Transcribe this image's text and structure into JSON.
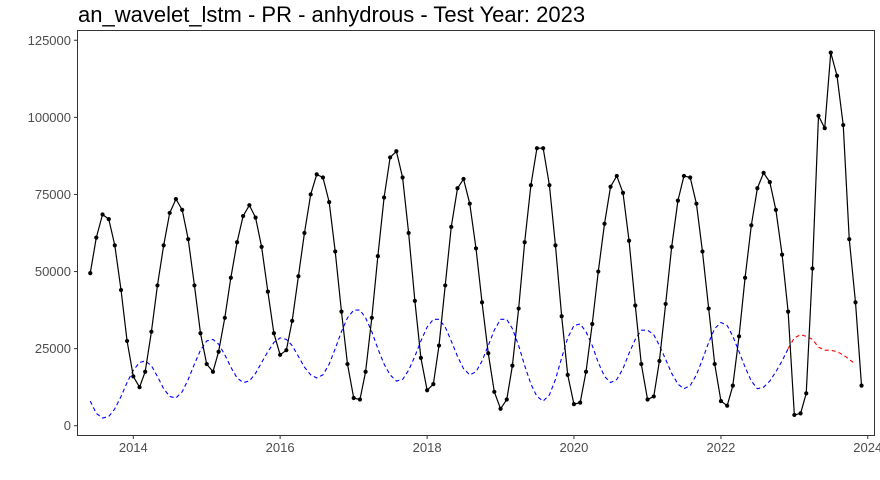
{
  "chart_data": {
    "type": "line",
    "title": "an_wavelet_lstm - PR - anhydrous - Test Year: 2023",
    "xlabel": "",
    "ylabel": "",
    "x_range": [
      "2013-04-01",
      "2024-02-01"
    ],
    "ylim": [
      -3000,
      128000
    ],
    "x_ticks": [
      "2014-01-01",
      "2016-01-01",
      "2018-01-01",
      "2020-01-01",
      "2022-01-01",
      "2024-01-01"
    ],
    "x_tick_labels": [
      "2014",
      "2016",
      "2018",
      "2020",
      "2022",
      "2024"
    ],
    "y_ticks": [
      0,
      25000,
      50000,
      75000,
      100000,
      125000
    ],
    "y_tick_labels": [
      "0",
      "25000",
      "50000",
      "75000",
      "100000",
      "125000"
    ],
    "grid": false,
    "legend": "none",
    "series": [
      {
        "style": "solid-with-points",
        "color": "#000000",
        "points": [
          [
            "2013-06-01",
            49500
          ],
          [
            "2013-07-01",
            61000
          ],
          [
            "2013-08-01",
            68500
          ],
          [
            "2013-09-01",
            67000
          ],
          [
            "2013-10-01",
            58500
          ],
          [
            "2013-11-01",
            44000
          ],
          [
            "2013-12-01",
            27500
          ],
          [
            "2014-01-01",
            16000
          ],
          [
            "2014-02-01",
            12500
          ],
          [
            "2014-03-01",
            17500
          ],
          [
            "2014-04-01",
            30500
          ],
          [
            "2014-05-01",
            45500
          ],
          [
            "2014-06-01",
            58500
          ],
          [
            "2014-07-01",
            69000
          ],
          [
            "2014-08-01",
            73500
          ],
          [
            "2014-09-01",
            70000
          ],
          [
            "2014-10-01",
            60500
          ],
          [
            "2014-11-01",
            45500
          ],
          [
            "2014-12-01",
            30000
          ],
          [
            "2015-01-01",
            20000
          ],
          [
            "2015-02-01",
            17500
          ],
          [
            "2015-03-01",
            24000
          ],
          [
            "2015-04-01",
            35000
          ],
          [
            "2015-05-01",
            48000
          ],
          [
            "2015-06-01",
            59500
          ],
          [
            "2015-07-01",
            68000
          ],
          [
            "2015-08-01",
            71500
          ],
          [
            "2015-09-01",
            67500
          ],
          [
            "2015-10-01",
            58000
          ],
          [
            "2015-11-01",
            43500
          ],
          [
            "2015-12-01",
            30000
          ],
          [
            "2016-01-01",
            23000
          ],
          [
            "2016-02-01",
            24500
          ],
          [
            "2016-03-01",
            34000
          ],
          [
            "2016-04-01",
            48500
          ],
          [
            "2016-05-01",
            62500
          ],
          [
            "2016-06-01",
            75000
          ],
          [
            "2016-07-01",
            81500
          ],
          [
            "2016-08-01",
            80500
          ],
          [
            "2016-09-01",
            72500
          ],
          [
            "2016-10-01",
            56500
          ],
          [
            "2016-11-01",
            37000
          ],
          [
            "2016-12-01",
            20000
          ],
          [
            "2017-01-01",
            9000
          ],
          [
            "2017-02-01",
            8500
          ],
          [
            "2017-03-01",
            17500
          ],
          [
            "2017-04-01",
            35000
          ],
          [
            "2017-05-01",
            55000
          ],
          [
            "2017-06-01",
            74000
          ],
          [
            "2017-07-01",
            87000
          ],
          [
            "2017-08-01",
            89000
          ],
          [
            "2017-09-01",
            80500
          ],
          [
            "2017-10-01",
            62500
          ],
          [
            "2017-11-01",
            40500
          ],
          [
            "2017-12-01",
            22000
          ],
          [
            "2018-01-01",
            11500
          ],
          [
            "2018-02-01",
            13500
          ],
          [
            "2018-03-01",
            26000
          ],
          [
            "2018-04-01",
            45500
          ],
          [
            "2018-05-01",
            64500
          ],
          [
            "2018-06-01",
            77000
          ],
          [
            "2018-07-01",
            80000
          ],
          [
            "2018-08-01",
            72000
          ],
          [
            "2018-09-01",
            57500
          ],
          [
            "2018-10-01",
            40000
          ],
          [
            "2018-11-01",
            23500
          ],
          [
            "2018-12-01",
            11000
          ],
          [
            "2019-01-01",
            5500
          ],
          [
            "2019-02-01",
            8500
          ],
          [
            "2019-03-01",
            19500
          ],
          [
            "2019-04-01",
            38000
          ],
          [
            "2019-05-01",
            59500
          ],
          [
            "2019-06-01",
            78000
          ],
          [
            "2019-07-01",
            90000
          ],
          [
            "2019-08-01",
            90000
          ],
          [
            "2019-09-01",
            78000
          ],
          [
            "2019-10-01",
            58500
          ],
          [
            "2019-11-01",
            35500
          ],
          [
            "2019-12-01",
            16500
          ],
          [
            "2020-01-01",
            7000
          ],
          [
            "2020-02-01",
            7500
          ],
          [
            "2020-03-01",
            17500
          ],
          [
            "2020-04-01",
            33000
          ],
          [
            "2020-05-01",
            50000
          ],
          [
            "2020-06-01",
            65500
          ],
          [
            "2020-07-01",
            77500
          ],
          [
            "2020-08-01",
            81000
          ],
          [
            "2020-09-01",
            75500
          ],
          [
            "2020-10-01",
            60000
          ],
          [
            "2020-11-01",
            39000
          ],
          [
            "2020-12-01",
            20000
          ],
          [
            "2021-01-01",
            8500
          ],
          [
            "2021-02-01",
            9500
          ],
          [
            "2021-03-01",
            21000
          ],
          [
            "2021-04-01",
            39500
          ],
          [
            "2021-05-01",
            58000
          ],
          [
            "2021-06-01",
            73000
          ],
          [
            "2021-07-01",
            81000
          ],
          [
            "2021-08-01",
            80500
          ],
          [
            "2021-09-01",
            72000
          ],
          [
            "2021-10-01",
            56500
          ],
          [
            "2021-11-01",
            38000
          ],
          [
            "2021-12-01",
            20000
          ],
          [
            "2022-01-01",
            8000
          ],
          [
            "2022-02-01",
            6500
          ],
          [
            "2022-03-01",
            13000
          ],
          [
            "2022-04-01",
            29000
          ],
          [
            "2022-05-01",
            48000
          ],
          [
            "2022-06-01",
            65000
          ],
          [
            "2022-07-01",
            77000
          ],
          [
            "2022-08-01",
            82000
          ],
          [
            "2022-09-01",
            79000
          ],
          [
            "2022-10-01",
            70000
          ],
          [
            "2022-11-01",
            55500
          ],
          [
            "2022-12-01",
            37000
          ],
          [
            "2023-01-01",
            3500
          ],
          [
            "2023-02-01",
            4000
          ],
          [
            "2023-03-01",
            10500
          ],
          [
            "2023-04-01",
            51000
          ],
          [
            "2023-05-01",
            100500
          ],
          [
            "2023-06-01",
            96500
          ],
          [
            "2023-07-01",
            121000
          ],
          [
            "2023-08-01",
            113500
          ],
          [
            "2023-09-01",
            97500
          ],
          [
            "2023-10-01",
            60500
          ],
          [
            "2023-11-01",
            40000
          ],
          [
            "2023-12-01",
            13000
          ]
        ]
      },
      {
        "style": "dashed",
        "color": "#0000ff",
        "points": [
          [
            "2013-06-01",
            8000
          ],
          [
            "2013-07-01",
            4000
          ],
          [
            "2013-08-01",
            2500
          ],
          [
            "2013-09-01",
            3000
          ],
          [
            "2013-10-01",
            5500
          ],
          [
            "2013-11-01",
            9500
          ],
          [
            "2013-12-01",
            14000
          ],
          [
            "2014-01-01",
            18000
          ],
          [
            "2014-02-01",
            20500
          ],
          [
            "2014-03-01",
            21000
          ],
          [
            "2014-04-01",
            19500
          ],
          [
            "2014-05-01",
            16000
          ],
          [
            "2014-06-01",
            12000
          ],
          [
            "2014-07-01",
            9500
          ],
          [
            "2014-08-01",
            9000
          ],
          [
            "2014-09-01",
            11000
          ],
          [
            "2014-10-01",
            15000
          ],
          [
            "2014-11-01",
            20000
          ],
          [
            "2014-12-01",
            24500
          ],
          [
            "2015-01-01",
            27500
          ],
          [
            "2015-02-01",
            28000
          ],
          [
            "2015-03-01",
            26500
          ],
          [
            "2015-04-01",
            23000
          ],
          [
            "2015-05-01",
            19000
          ],
          [
            "2015-06-01",
            15500
          ],
          [
            "2015-07-01",
            14000
          ],
          [
            "2015-08-01",
            14500
          ],
          [
            "2015-09-01",
            17000
          ],
          [
            "2015-10-01",
            20500
          ],
          [
            "2015-11-01",
            24000
          ],
          [
            "2015-12-01",
            27000
          ],
          [
            "2016-01-01",
            28500
          ],
          [
            "2016-02-01",
            28000
          ],
          [
            "2016-03-01",
            26000
          ],
          [
            "2016-04-01",
            22500
          ],
          [
            "2016-05-01",
            19000
          ],
          [
            "2016-06-01",
            16500
          ],
          [
            "2016-07-01",
            15500
          ],
          [
            "2016-08-01",
            16500
          ],
          [
            "2016-09-01",
            20000
          ],
          [
            "2016-10-01",
            25000
          ],
          [
            "2016-11-01",
            30500
          ],
          [
            "2016-12-01",
            35000
          ],
          [
            "2017-01-01",
            37500
          ],
          [
            "2017-02-01",
            37500
          ],
          [
            "2017-03-01",
            35000
          ],
          [
            "2017-04-01",
            30500
          ],
          [
            "2017-05-01",
            25000
          ],
          [
            "2017-06-01",
            20000
          ],
          [
            "2017-07-01",
            16500
          ],
          [
            "2017-08-01",
            14500
          ],
          [
            "2017-09-01",
            15000
          ],
          [
            "2017-10-01",
            18000
          ],
          [
            "2017-11-01",
            22500
          ],
          [
            "2017-12-01",
            27500
          ],
          [
            "2018-01-01",
            32000
          ],
          [
            "2018-02-01",
            34500
          ],
          [
            "2018-03-01",
            34500
          ],
          [
            "2018-04-01",
            32000
          ],
          [
            "2018-05-01",
            27500
          ],
          [
            "2018-06-01",
            22500
          ],
          [
            "2018-07-01",
            18500
          ],
          [
            "2018-08-01",
            16500
          ],
          [
            "2018-09-01",
            17500
          ],
          [
            "2018-10-01",
            21000
          ],
          [
            "2018-11-01",
            26000
          ],
          [
            "2018-12-01",
            31000
          ],
          [
            "2019-01-01",
            34500
          ],
          [
            "2019-02-01",
            34500
          ],
          [
            "2019-03-01",
            31500
          ],
          [
            "2019-04-01",
            26000
          ],
          [
            "2019-05-01",
            19500
          ],
          [
            "2019-06-01",
            13500
          ],
          [
            "2019-07-01",
            9500
          ],
          [
            "2019-08-01",
            8000
          ],
          [
            "2019-09-01",
            10000
          ],
          [
            "2019-10-01",
            15000
          ],
          [
            "2019-11-01",
            22000
          ],
          [
            "2019-12-01",
            28500
          ],
          [
            "2020-01-01",
            32500
          ],
          [
            "2020-02-01",
            33000
          ],
          [
            "2020-03-01",
            30500
          ],
          [
            "2020-04-01",
            26000
          ],
          [
            "2020-05-01",
            20500
          ],
          [
            "2020-06-01",
            16000
          ],
          [
            "2020-07-01",
            14000
          ],
          [
            "2020-08-01",
            15000
          ],
          [
            "2020-09-01",
            18500
          ],
          [
            "2020-10-01",
            23500
          ],
          [
            "2020-11-01",
            28000
          ],
          [
            "2020-12-01",
            31000
          ],
          [
            "2021-01-01",
            31000
          ],
          [
            "2021-02-01",
            29500
          ],
          [
            "2021-03-01",
            26000
          ],
          [
            "2021-04-01",
            21500
          ],
          [
            "2021-05-01",
            17000
          ],
          [
            "2021-06-01",
            13500
          ],
          [
            "2021-07-01",
            12000
          ],
          [
            "2021-08-01",
            13000
          ],
          [
            "2021-09-01",
            16500
          ],
          [
            "2021-10-01",
            21500
          ],
          [
            "2021-11-01",
            27000
          ],
          [
            "2021-12-01",
            31500
          ],
          [
            "2022-01-01",
            33500
          ],
          [
            "2022-02-01",
            32500
          ],
          [
            "2022-03-01",
            29000
          ],
          [
            "2022-04-01",
            24000
          ],
          [
            "2022-05-01",
            19000
          ],
          [
            "2022-06-01",
            14500
          ],
          [
            "2022-07-01",
            12000
          ],
          [
            "2022-08-01",
            12500
          ],
          [
            "2022-09-01",
            14500
          ],
          [
            "2022-10-01",
            17500
          ],
          [
            "2022-11-01",
            21000
          ],
          [
            "2022-12-01",
            25000
          ]
        ]
      },
      {
        "style": "dashed",
        "color": "#ff0000",
        "points": [
          [
            "2022-12-01",
            25000
          ],
          [
            "2023-01-01",
            28500
          ],
          [
            "2023-02-01",
            29500
          ],
          [
            "2023-03-01",
            29000
          ],
          [
            "2023-04-01",
            28000
          ],
          [
            "2023-05-01",
            25500
          ],
          [
            "2023-06-01",
            24500
          ],
          [
            "2023-07-01",
            24500
          ],
          [
            "2023-08-01",
            24000
          ],
          [
            "2023-09-01",
            23000
          ],
          [
            "2023-10-01",
            21500
          ],
          [
            "2023-11-01",
            20000
          ]
        ]
      }
    ]
  }
}
